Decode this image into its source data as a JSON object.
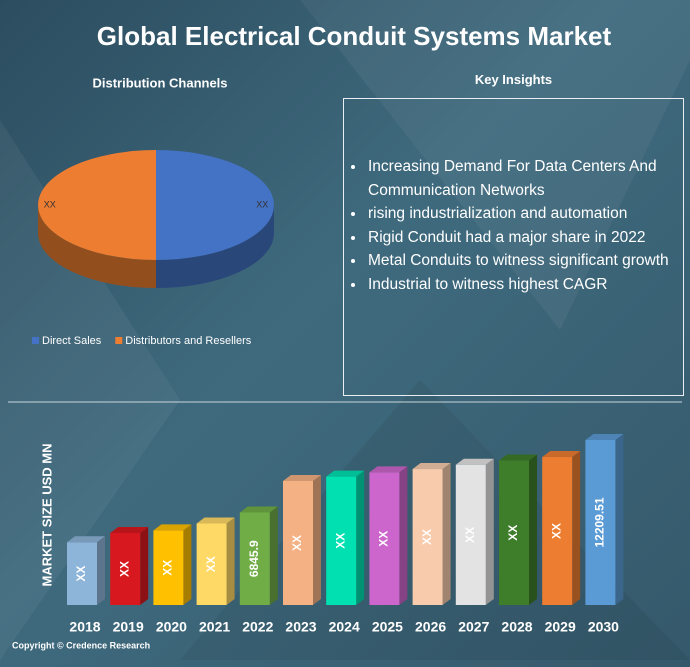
{
  "title": "Global Electrical Conduit Systems Market",
  "chart_data": [
    {
      "type": "pie",
      "title": "Distribution Channels",
      "categories": [
        "Direct Sales",
        "Distributors and Resellers"
      ],
      "values": [
        50,
        50
      ],
      "value_labels": [
        "XX",
        "XX"
      ],
      "colors": [
        "#4472c4",
        "#ed7d31"
      ],
      "legend": "bottom"
    },
    {
      "type": "bar",
      "y_label": "MARKET SIZE USD MN",
      "categories": [
        "2018",
        "2019",
        "2020",
        "2021",
        "2022",
        "2023",
        "2024",
        "2025",
        "2026",
        "2027",
        "2028",
        "2029",
        "2030"
      ],
      "values": [
        4640,
        5330,
        5520,
        6030,
        6845.9,
        9180,
        9500,
        9810,
        10060,
        10380,
        10690,
        10950,
        12209.51
      ],
      "value_labels": [
        "XX",
        "XX",
        "XX",
        "XX",
        "6845.9",
        "XX",
        "XX",
        "XX",
        "XX",
        "XX",
        "XX",
        "XX",
        "12209.51"
      ],
      "colors": [
        "#8db4d9",
        "#d7191f",
        "#ffc000",
        "#ffd966",
        "#70ad47",
        "#f4b183",
        "#00e0b0",
        "#cc66cc",
        "#f8cbad",
        "#e3e3e3",
        "#3e7d2a",
        "#ed7d31",
        "#5b9bd5"
      ]
    }
  ],
  "key_insights": {
    "title": "Key Insights",
    "items": [
      "Increasing Demand For Data Centers And Communication Networks",
      "rising industrialization and automation",
      "Rigid Conduit had a major share in 2022",
      "Metal Conduits to witness significant growth",
      "Industrial to witness highest CAGR"
    ]
  },
  "copyright": "Copyright © Credence Research"
}
